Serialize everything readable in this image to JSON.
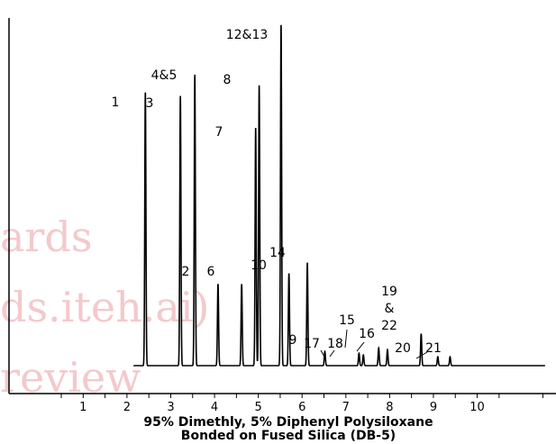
{
  "watermark": {
    "line1": "ards",
    "line2": "ds.iteh.ai)",
    "line3": "review",
    "color": "#f3c9cc"
  },
  "caption": {
    "line1": "95% Dimethly, 5% Diphenyl Polysiloxane",
    "line2": "Bonded on Fused Silica (DB-5)"
  },
  "chart_data": {
    "type": "line",
    "title": "",
    "xlabel": "",
    "ylabel": "",
    "xlim": [
      -0.9,
      11.8
    ],
    "ylim": [
      -0.05,
      1.0
    ],
    "x_ticks": [
      1,
      2,
      3,
      4,
      5,
      6,
      7,
      8,
      9,
      10
    ],
    "grid": false,
    "line_color": "#000000",
    "peaks": [
      {
        "label": "1",
        "rt": 2.42,
        "height": 0.77
      },
      {
        "label": "3",
        "rt": 3.22,
        "height": 0.76
      },
      {
        "label": "4&5",
        "rt": 3.55,
        "height": 0.82
      },
      {
        "label": "2",
        "rt": 4.08,
        "height": 0.23
      },
      {
        "label": "6",
        "rt": 4.62,
        "height": 0.23
      },
      {
        "label": "7",
        "rt": 4.94,
        "height": 0.67
      },
      {
        "label": "8",
        "rt": 5.02,
        "height": 0.79
      },
      {
        "label": "12&13",
        "rt": 5.52,
        "height": 0.96
      },
      {
        "label": "10",
        "rt": 5.7,
        "height": 0.26
      },
      {
        "label": "14",
        "rt": 6.12,
        "height": 0.29
      },
      {
        "label": "9",
        "rt": 6.52,
        "height": 0.04
      },
      {
        "label": "17",
        "rt": 7.3,
        "height": 0.035
      },
      {
        "label": "18",
        "rt": 7.4,
        "height": 0.03
      },
      {
        "label": "15",
        "rt": 7.75,
        "height": 0.05
      },
      {
        "label": "16",
        "rt": 7.95,
        "height": 0.045
      },
      {
        "label": "19\n&\n22",
        "rt": 8.72,
        "height": 0.09
      },
      {
        "label": "20",
        "rt": 9.1,
        "height": 0.025
      },
      {
        "label": "21",
        "rt": 9.38,
        "height": 0.025
      }
    ]
  }
}
